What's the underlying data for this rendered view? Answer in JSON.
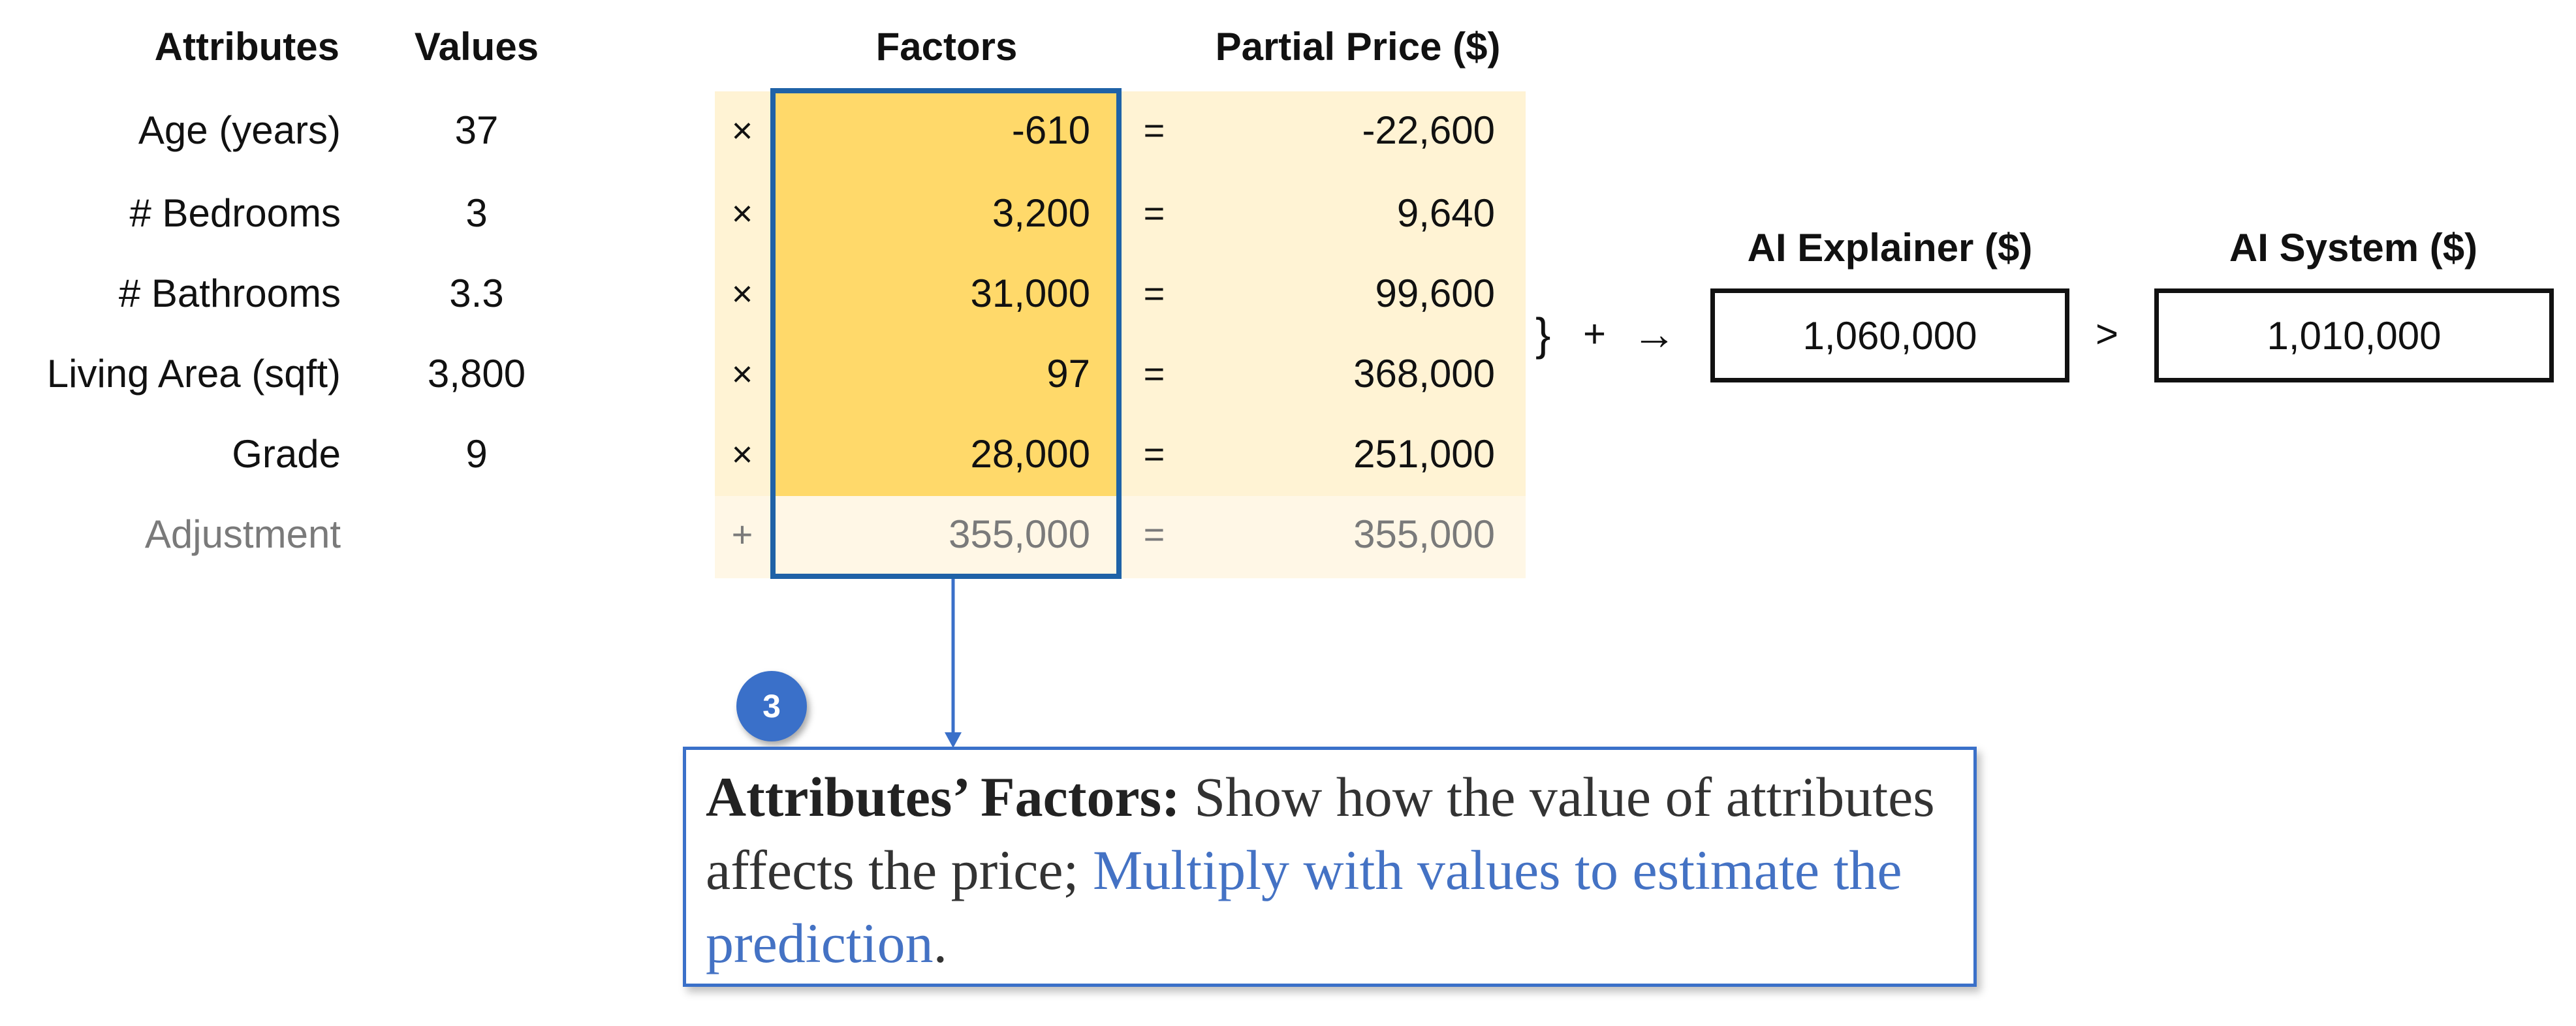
{
  "headers": {
    "attributes": "Attributes",
    "values": "Values",
    "factors": "Factors",
    "partial_price": "Partial Price ($)"
  },
  "rows": [
    {
      "attribute": "Age (years)",
      "value": "37",
      "op": "×",
      "factor": "-610",
      "eq": "=",
      "partial": "-22,600"
    },
    {
      "attribute": "# Bedrooms",
      "value": "3",
      "op": "×",
      "factor": "3,200",
      "eq": "=",
      "partial": "9,640"
    },
    {
      "attribute": "# Bathrooms",
      "value": "3.3",
      "op": "×",
      "factor": "31,000",
      "eq": "=",
      "partial": "99,600"
    },
    {
      "attribute": "Living Area (sqft)",
      "value": "3,800",
      "op": "×",
      "factor": "97",
      "eq": "=",
      "partial": "368,000"
    },
    {
      "attribute": "Grade",
      "value": "9",
      "op": "×",
      "factor": "28,000",
      "eq": "=",
      "partial": "251,000"
    }
  ],
  "adjustment": {
    "label": "Adjustment",
    "op": "+",
    "factor": "355,000",
    "eq": "=",
    "partial": "355,000"
  },
  "sum_symbol": "}",
  "plus_symbol": "+",
  "arrow_symbol": "→",
  "explainer": {
    "title": "AI Explainer ($)",
    "value": "1,060,000"
  },
  "compare_symbol": ">",
  "system": {
    "title": "AI System ($)",
    "value": "1,010,000"
  },
  "badge": "3",
  "callout": {
    "lead": "Attributes’ Factors:",
    "text": " Show how the value of attributes affects the price; ",
    "highlight": "Multiply with values to estimate the prediction",
    "end": "."
  },
  "colors": {
    "factor_fill": "#FFD96A",
    "row_fill": "#FFF3D4",
    "adjust_fill": "#FFF7E6",
    "frame": "#1F62A7",
    "accent": "#4472C4"
  }
}
